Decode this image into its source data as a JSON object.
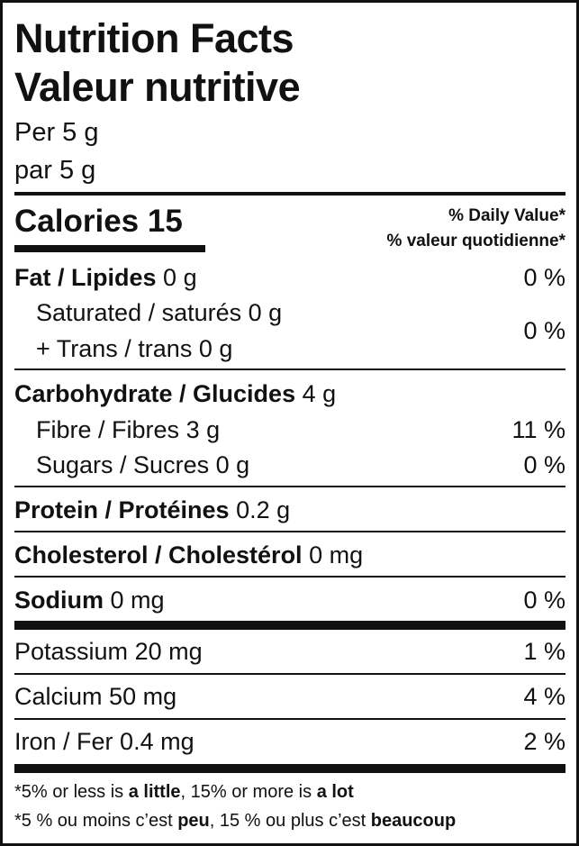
{
  "title_en": "Nutrition Facts",
  "title_fr": "Valeur nutritive",
  "serving_en": "Per 5 g",
  "serving_fr": "par 5 g",
  "calories_label": "Calories",
  "calories_value": "15",
  "dv_en": "% Daily Value*",
  "dv_fr": "% valeur quotidienne*",
  "nutrients": {
    "fat": {
      "label": "Fat / Lipides",
      "amount": "0 g",
      "dv": "0 %"
    },
    "saturated": {
      "label": "Saturated / saturés",
      "amount": "0 g"
    },
    "trans": {
      "label": "+ Trans / trans",
      "amount": "0 g"
    },
    "sat_trans_dv": "0 %",
    "carb": {
      "label": "Carbohydrate / Glucides",
      "amount": "4 g"
    },
    "fibre": {
      "label": "Fibre / Fibres",
      "amount": "3 g",
      "dv": "11 %"
    },
    "sugars": {
      "label": "Sugars / Sucres",
      "amount": "0 g",
      "dv": "0 %"
    },
    "protein": {
      "label": "Protein / Protéines",
      "amount": "0.2 g"
    },
    "cholesterol": {
      "label": "Cholesterol / Cholestérol",
      "amount": "0 mg"
    },
    "sodium": {
      "label": "Sodium",
      "amount": "0 mg",
      "dv": "0 %"
    },
    "potassium": {
      "label": "Potassium",
      "amount": "20 mg",
      "dv": "1 %"
    },
    "calcium": {
      "label": "Calcium",
      "amount": "50 mg",
      "dv": "4 %"
    },
    "iron": {
      "label": "Iron / Fer",
      "amount": "0.4 mg",
      "dv": "2 %"
    }
  },
  "footnote_en": {
    "a": "*5% or less is ",
    "b": "a little",
    "c": ", 15% or more is ",
    "d": "a lot"
  },
  "footnote_fr": {
    "a": "*5 % ou moins c’est ",
    "b": "peu",
    "c": ", 15 % ou plus c’est ",
    "d": "beaucoup"
  }
}
